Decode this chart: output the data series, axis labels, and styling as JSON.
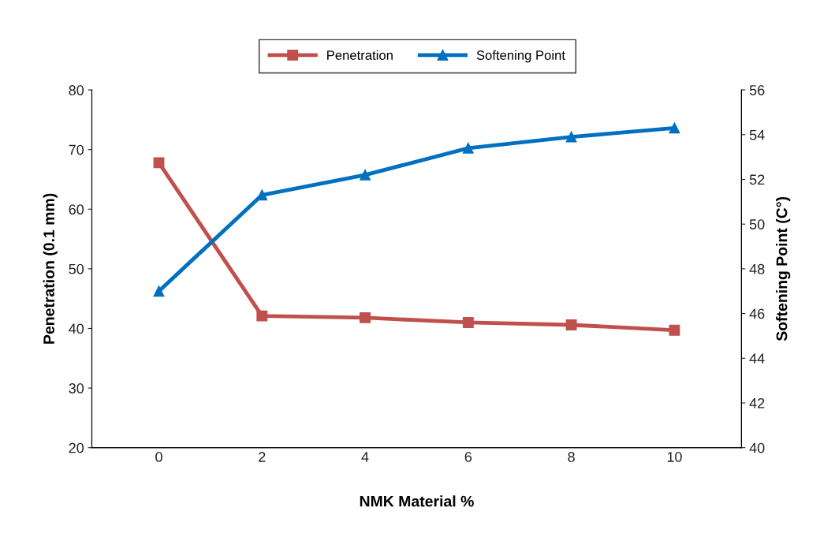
{
  "chart_data": {
    "type": "line",
    "xlabel": "NMK Material %",
    "ylabel": "Penetration (0.1 mm)",
    "y2label": "Softening Point (C°)",
    "categories": [
      "0",
      "2",
      "4",
      "6",
      "8",
      "10"
    ],
    "series": [
      {
        "name": "Penetration",
        "color": "#c0504d",
        "marker": "square",
        "values": [
          67.8,
          42.1,
          41.8,
          41.0,
          40.6,
          39.7
        ]
      },
      {
        "name": "Softening Point",
        "color": "#0070c0",
        "marker": "triangle",
        "axis": "y2",
        "values": [
          47.0,
          51.3,
          52.2,
          53.4,
          53.9,
          54.3
        ]
      }
    ],
    "ylim": [
      20,
      80
    ],
    "yticks": [
      20,
      30,
      40,
      50,
      60,
      70,
      80
    ],
    "y2lim": [
      40,
      56
    ],
    "y2ticks": [
      40,
      42,
      44,
      46,
      48,
      50,
      52,
      54,
      56
    ],
    "legend": "top",
    "grid": false
  }
}
